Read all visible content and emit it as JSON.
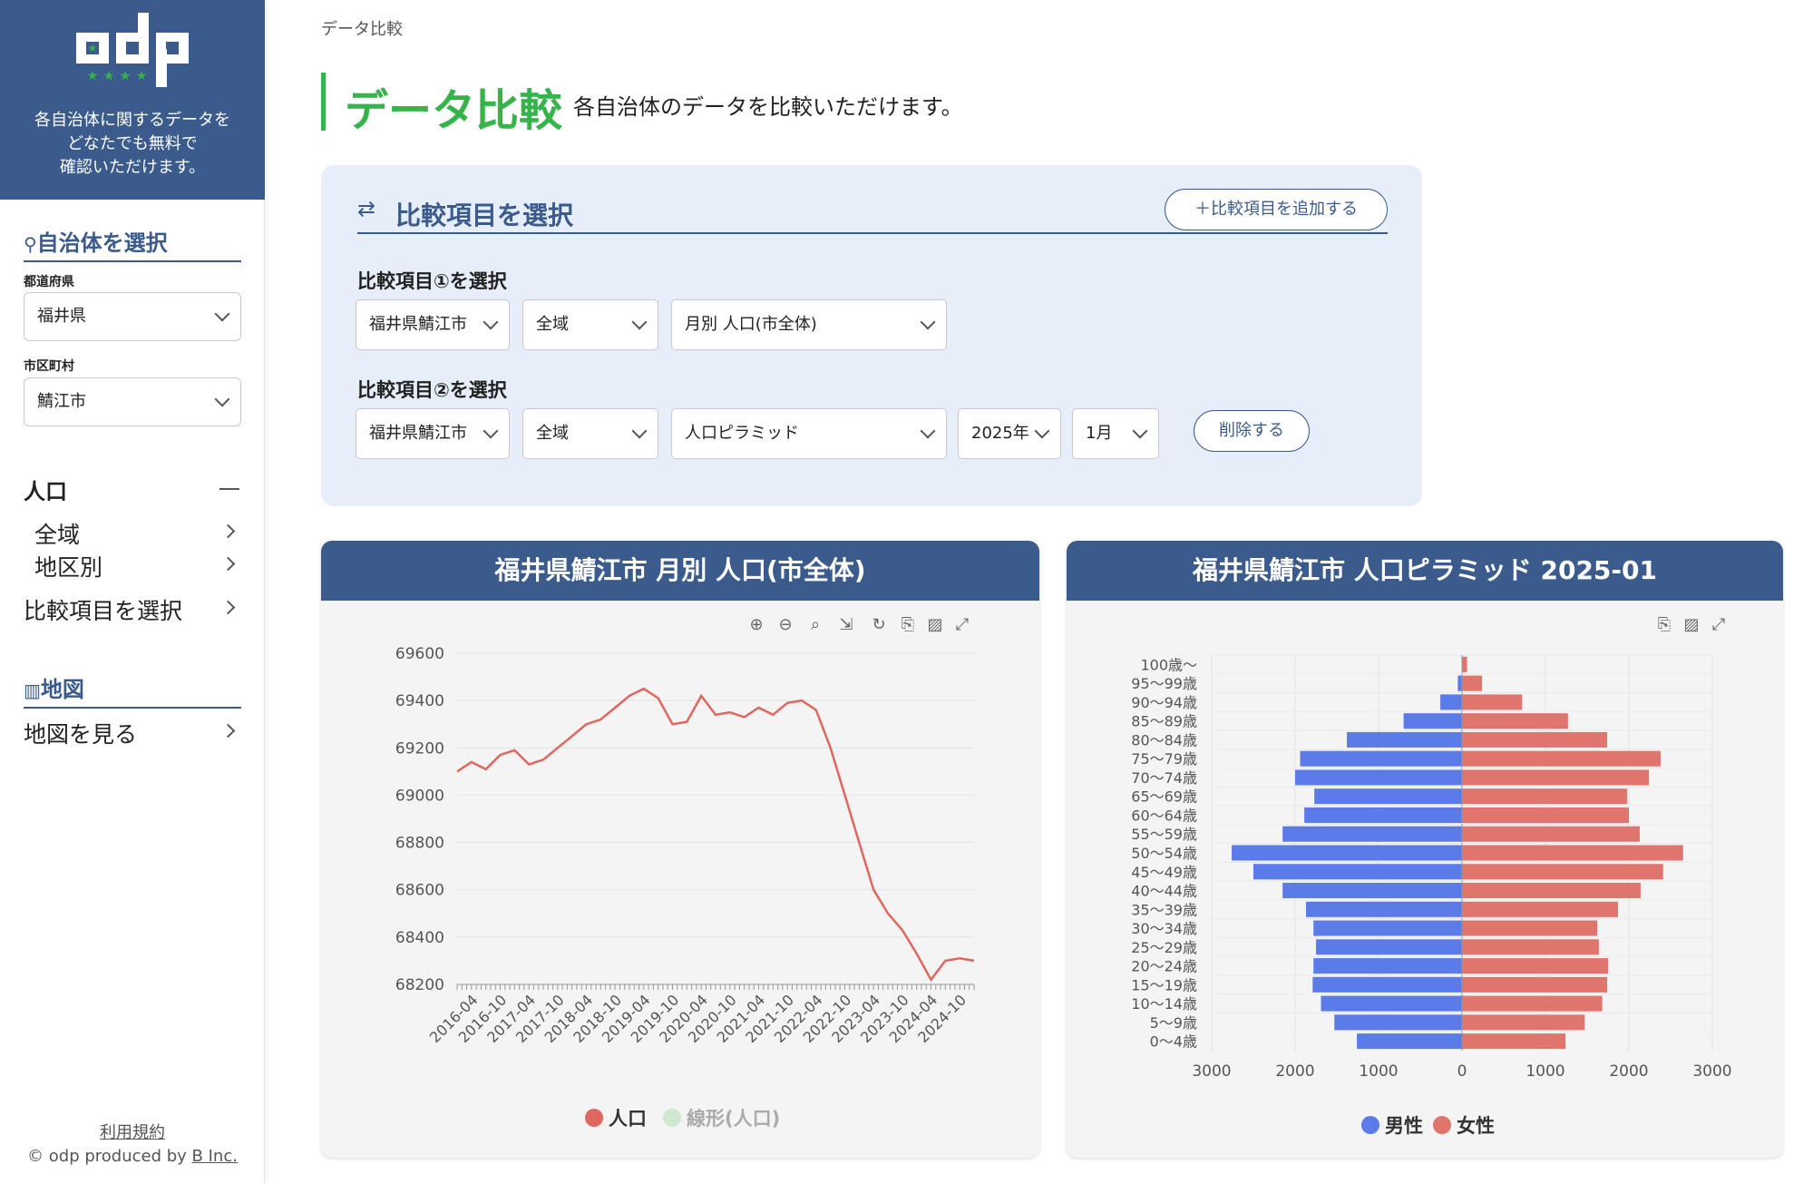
{
  "sidebar": {
    "logo_text": "odp",
    "tagline": [
      "各自治体に関するデータを",
      "どなたでも無料で",
      "確認いただけます。"
    ],
    "section_municipality": "自治体を選択",
    "prefecture_label": "都道府県",
    "prefecture_value": "福井県",
    "city_label": "市区町村",
    "city_value": "鯖江市",
    "population_heading": "人口",
    "nav_all_area": "全域",
    "nav_by_district": "地区別",
    "nav_compare": "比較項目を選択",
    "section_map": "地図",
    "nav_view_map": "地図を見る",
    "footer_terms": "利用規約",
    "footer_copyright_prefix": "© odp produced by ",
    "footer_company": "B Inc."
  },
  "breadcrumb": "データ比較",
  "page": {
    "title": "データ比較",
    "description": "各自治体のデータを比較いただけます。"
  },
  "panel": {
    "title": "比較項目を選択",
    "add_label": "＋比較項目を追加する",
    "item1_label": "比較項目①を選択",
    "item1_city": "福井県鯖江市",
    "item1_area": "全域",
    "item1_data": "月別 人口(市全体)",
    "item2_label": "比較項目②を選択",
    "item2_city": "福井県鯖江市",
    "item2_area": "全域",
    "item2_data": "人口ピラミッド",
    "item2_year": "2025年",
    "item2_month": "1月",
    "delete_label": "削除する"
  },
  "colors": {
    "accent_green": "#36b34a",
    "navy": "#3b5b8c",
    "line_red": "#e0675f",
    "male_blue": "#5b7be8",
    "female_red": "#e0756d"
  },
  "charts": {
    "left_title": "福井県鯖江市 月別 人口(市全体)",
    "right_title": "福井県鯖江市 人口ピラミッド 2025-01"
  },
  "chart_data": [
    {
      "type": "line",
      "title": "福井県鯖江市 月別 人口(市全体)",
      "ylim": [
        68200,
        69600
      ],
      "yticks": [
        69600,
        69400,
        69200,
        69000,
        68800,
        68600,
        68400,
        68200
      ],
      "xticks": [
        "2016-04",
        "2016-10",
        "2017-04",
        "2017-10",
        "2018-04",
        "2018-10",
        "2019-04",
        "2019-10",
        "2020-04",
        "2020-10",
        "2021-04",
        "2021-10",
        "2022-04",
        "2022-10",
        "2023-04",
        "2023-10",
        "2024-04",
        "2024-10"
      ],
      "legend": [
        "人口",
        "線形(人口)"
      ],
      "series": [
        {
          "name": "人口",
          "x": [
            "2016-01",
            "2016-04",
            "2016-07",
            "2016-10",
            "2017-01",
            "2017-04",
            "2017-07",
            "2017-10",
            "2018-01",
            "2018-04",
            "2018-07",
            "2018-10",
            "2019-01",
            "2019-04",
            "2019-07",
            "2019-10",
            "2020-01",
            "2020-04",
            "2020-07",
            "2020-10",
            "2021-01",
            "2021-04",
            "2021-07",
            "2021-10",
            "2022-01",
            "2022-04",
            "2022-07",
            "2022-10",
            "2023-01",
            "2023-04",
            "2023-07",
            "2023-10",
            "2024-01",
            "2024-04",
            "2024-07",
            "2024-10",
            "2025-01"
          ],
          "values": [
            69100,
            69140,
            69110,
            69170,
            69190,
            69130,
            69150,
            69200,
            69250,
            69300,
            69320,
            69370,
            69420,
            69450,
            69410,
            69300,
            69310,
            69420,
            69340,
            69350,
            69330,
            69370,
            69340,
            69390,
            69400,
            69360,
            69200,
            69000,
            68800,
            68600,
            68500,
            68430,
            68330,
            68220,
            68300,
            68310,
            68300
          ]
        },
        {
          "name": "線形(人口)",
          "values": []
        }
      ]
    },
    {
      "type": "bar",
      "title": "福井県鯖江市 人口ピラミッド 2025-01",
      "categories": [
        "100歳〜",
        "95〜99歳",
        "90〜94歳",
        "85〜89歳",
        "80〜84歳",
        "75〜79歳",
        "70〜74歳",
        "65〜69歳",
        "60〜64歳",
        "55〜59歳",
        "50〜54歳",
        "45〜49歳",
        "40〜44歳",
        "35〜39歳",
        "30〜34歳",
        "25〜29歳",
        "20〜24歳",
        "15〜19歳",
        "10〜14歳",
        "5〜9歳",
        "0〜4歳"
      ],
      "xticks": [
        "3000",
        "2000",
        "1000",
        "0",
        "1000",
        "2000",
        "3000"
      ],
      "xlim": [
        -3000,
        3000
      ],
      "legend": [
        "男性",
        "女性"
      ],
      "series": [
        {
          "name": "男性",
          "values": [
            5,
            50,
            260,
            700,
            1380,
            1940,
            2000,
            1770,
            1890,
            2150,
            2760,
            2500,
            2150,
            1870,
            1780,
            1750,
            1780,
            1790,
            1690,
            1530,
            1260
          ]
        },
        {
          "name": "女性",
          "values": [
            60,
            240,
            720,
            1270,
            1740,
            2380,
            2240,
            1980,
            2000,
            2130,
            2650,
            2410,
            2140,
            1870,
            1620,
            1640,
            1750,
            1740,
            1680,
            1470,
            1240
          ]
        }
      ]
    }
  ]
}
